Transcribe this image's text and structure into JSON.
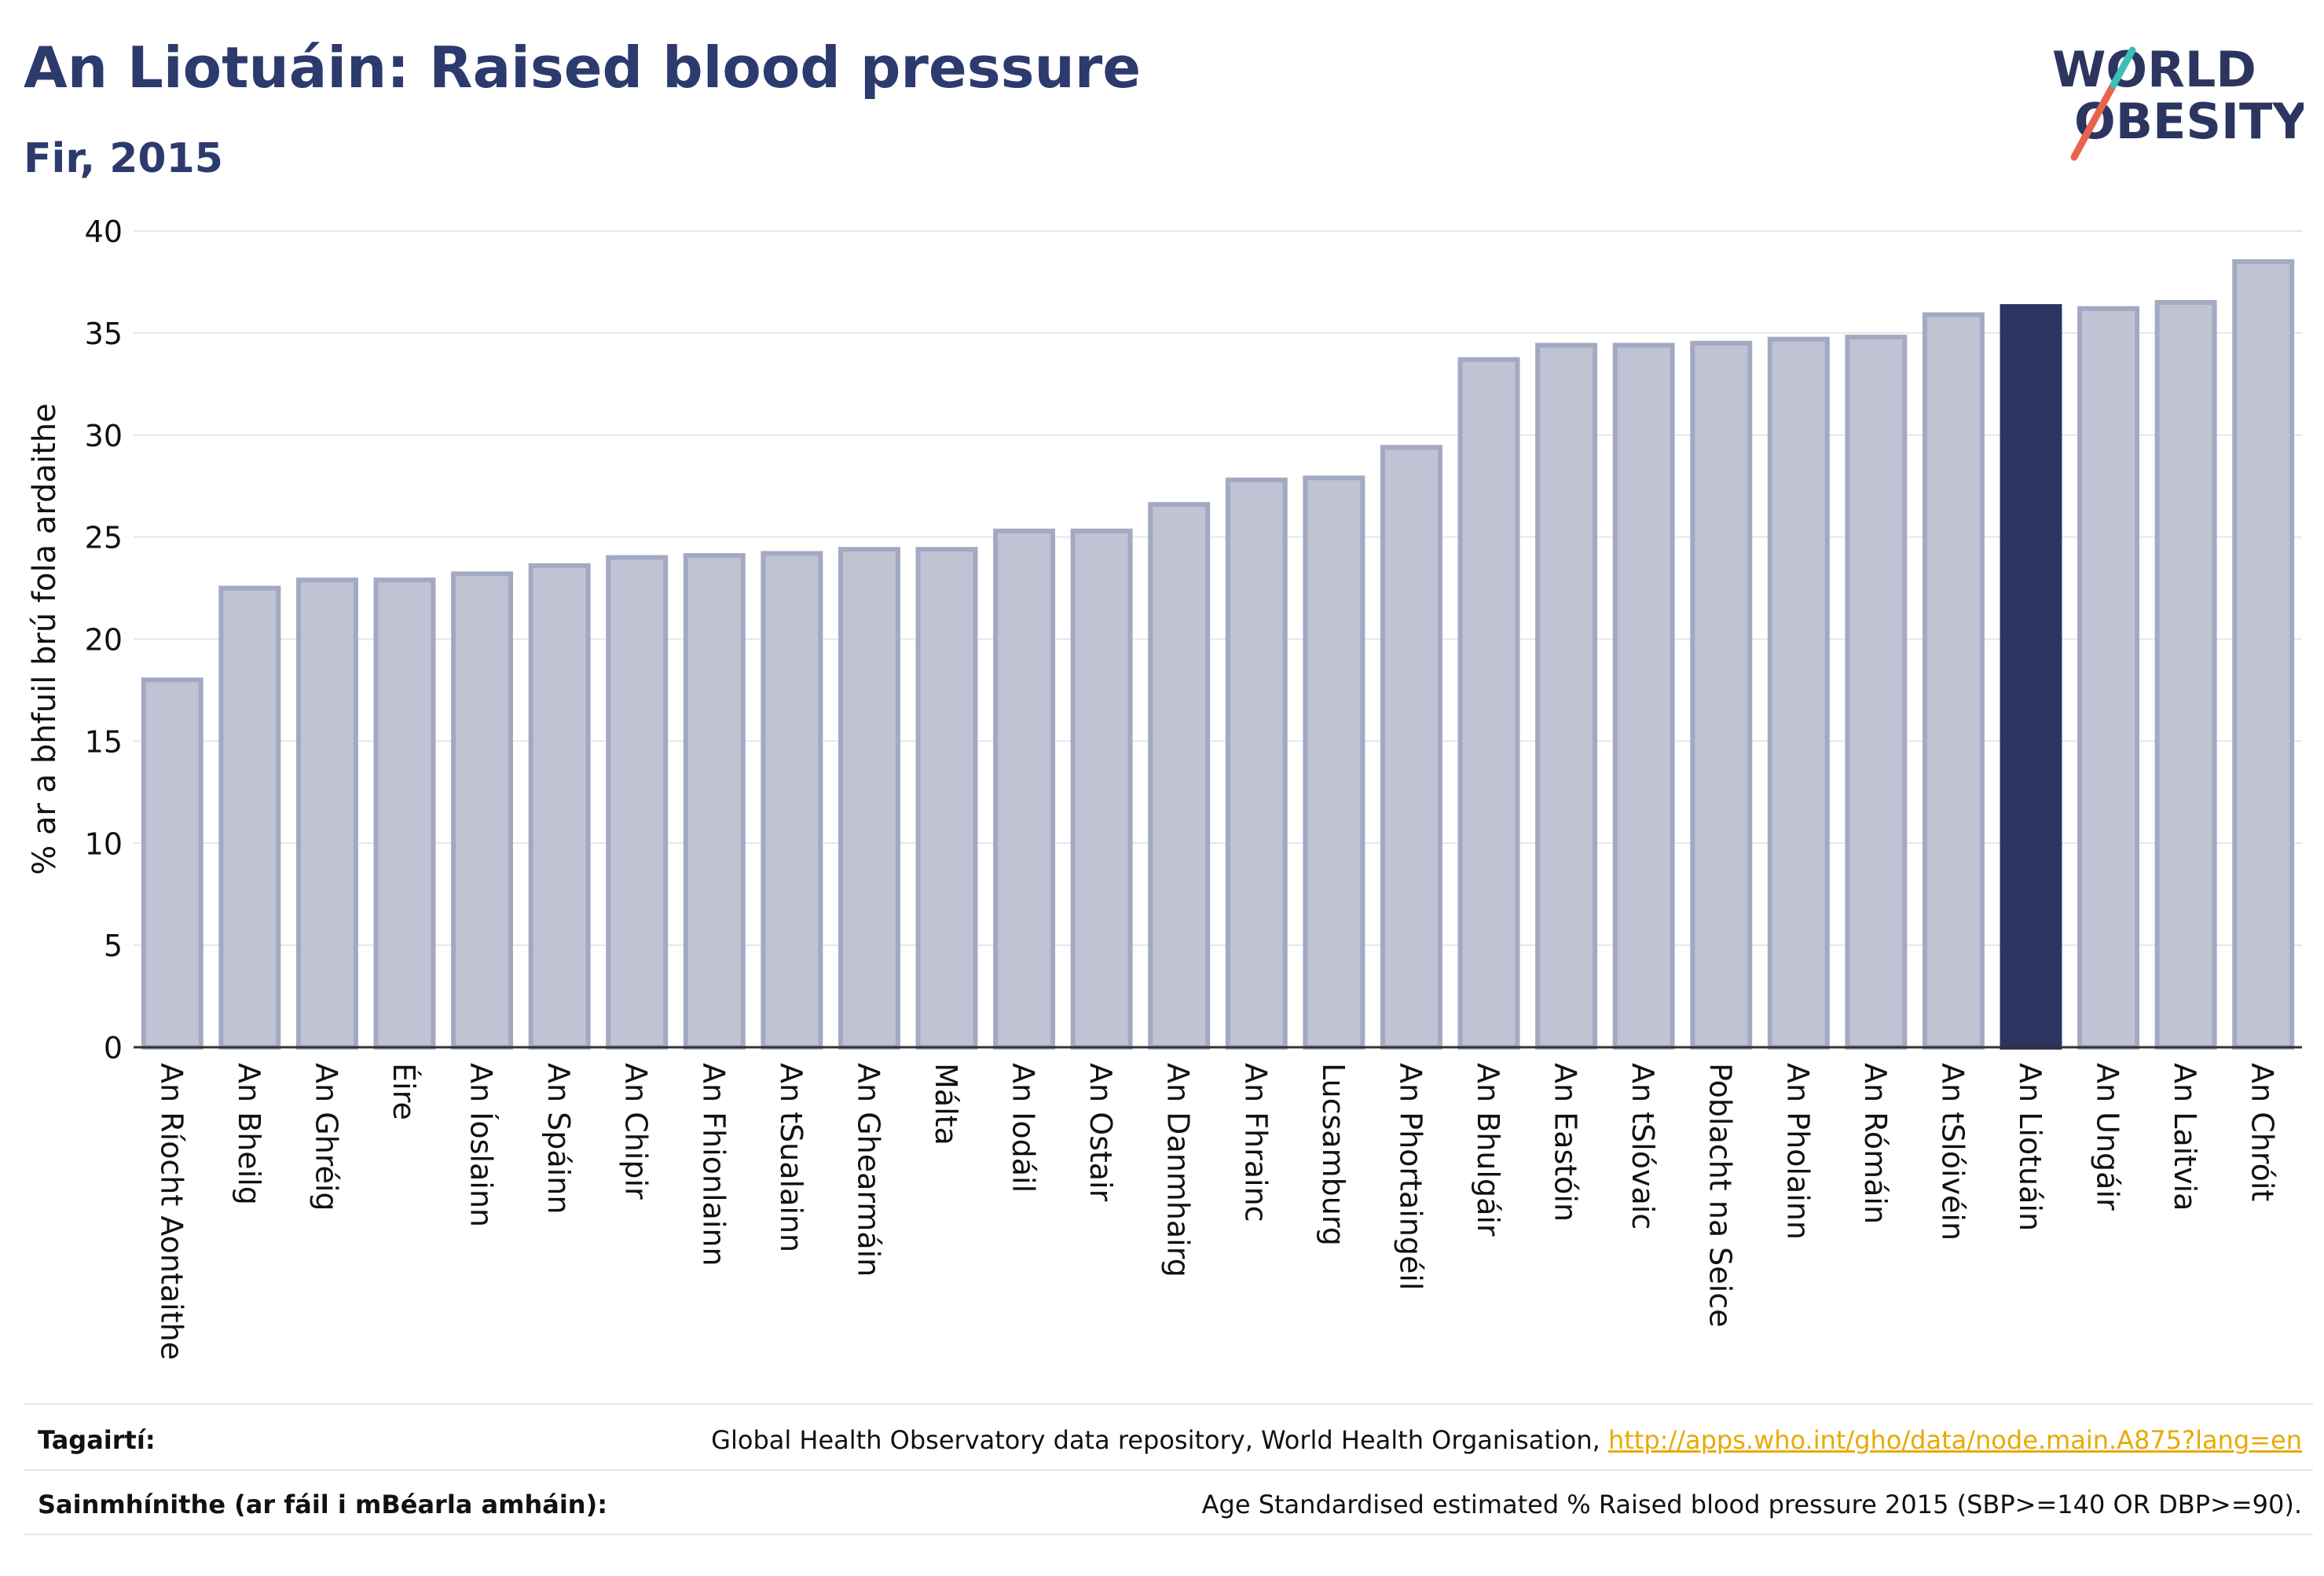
{
  "header": {
    "title": "An Liotuáin: Raised blood pressure",
    "subtitle": "Fir, 2015"
  },
  "logo": {
    "line1": "WORLD",
    "line2": "OBESITY"
  },
  "chart_data": {
    "type": "bar",
    "ylabel": "% ar a bhfuil brú fola ardaithe",
    "ylim": [
      0,
      40
    ],
    "yticks": [
      0,
      5,
      10,
      15,
      20,
      25,
      30,
      35,
      40
    ],
    "grid": true,
    "highlight": "An Liotuáin",
    "colors": {
      "bar": "#c0c3d3",
      "bar_border": "#a4a9c2",
      "highlight": "#2c3560",
      "grid": "#e5e6ea",
      "axis": "#333333"
    },
    "categories": [
      "An Ríocht Aontaithe",
      "An Bheilg",
      "An Ghréig",
      "Éire",
      "An Íoslainn",
      "An Spáinn",
      "An Chipir",
      "An Fhionlainn",
      "An tSualainn",
      "An Ghearmáin",
      "Málta",
      "An Iodáil",
      "An Ostair",
      "An Danmhairg",
      "An Fhrainc",
      "Lucsamburg",
      "An Phortaingéil",
      "An Bhulgáir",
      "An Eastóin",
      "An tSlóvaic",
      "Poblacht na Seice",
      "An Pholainn",
      "An Rómáin",
      "An tSlóivéin",
      "An Liotuáin",
      "An Ungáir",
      "An Laitvia",
      "An Chróit"
    ],
    "values": [
      18.0,
      22.5,
      22.9,
      22.9,
      23.2,
      23.6,
      24.0,
      24.1,
      24.2,
      24.4,
      24.4,
      25.3,
      25.3,
      26.6,
      27.8,
      27.9,
      29.4,
      33.7,
      34.4,
      34.4,
      34.5,
      34.7,
      34.8,
      35.9,
      36.3,
      36.2,
      36.5,
      38.5
    ]
  },
  "footer": {
    "refs_label": "Tagairtí:",
    "refs_text": "Global Health Observatory data repository, World Health Organisation, ",
    "refs_link": "http://apps.who.int/gho/data/node.main.A875?lang=en",
    "def_label": "Sainmhínithe (ar fáil i mBéarla amháin):",
    "def_text": "Age Standardised estimated % Raised blood pressure 2015 (SBP>=140 OR DBP>=90)."
  }
}
